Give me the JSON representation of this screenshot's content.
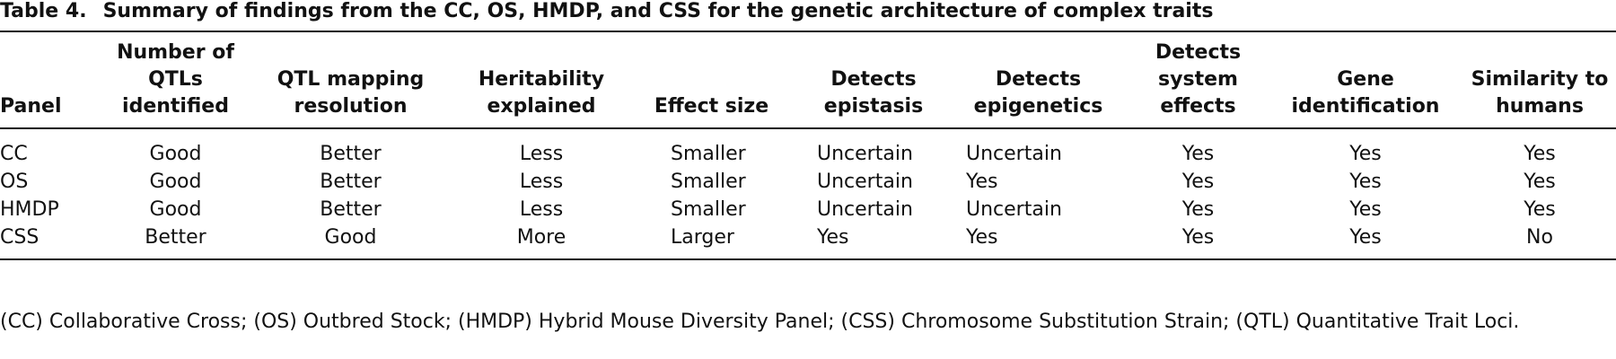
{
  "title": {
    "label": "Table 4.",
    "text": "Summary of findings from the CC, OS, HMDP, and CSS for the genetic architecture of complex traits"
  },
  "table": {
    "columns": [
      "Panel",
      "Number of QTLs identified",
      "QTL mapping resolution",
      "Heritability explained",
      "Effect size",
      "Detects epistasis",
      "Detects epigenetics",
      "Detects system effects",
      "Gene identification",
      "Similarity to humans"
    ],
    "rows": [
      [
        "CC",
        "Good",
        "Better",
        "Less",
        "Smaller",
        "Uncertain",
        "Uncertain",
        "Yes",
        "Yes",
        "Yes"
      ],
      [
        "OS",
        "Good",
        "Better",
        "Less",
        "Smaller",
        "Uncertain",
        "Yes",
        "Yes",
        "Yes",
        "Yes"
      ],
      [
        "HMDP",
        "Good",
        "Better",
        "Less",
        "Smaller",
        "Uncertain",
        "Uncertain",
        "Yes",
        "Yes",
        "Yes"
      ],
      [
        "CSS",
        "Better",
        "Good",
        "More",
        "Larger",
        "Yes",
        "Yes",
        "Yes",
        "Yes",
        "No"
      ]
    ]
  },
  "footnote": "(CC) Collaborative Cross; (OS) Outbred Stock; (HMDP) Hybrid Mouse Diversity Panel; (CSS) Chromosome Substitution Strain; (QTL) Quantitative Trait Loci."
}
